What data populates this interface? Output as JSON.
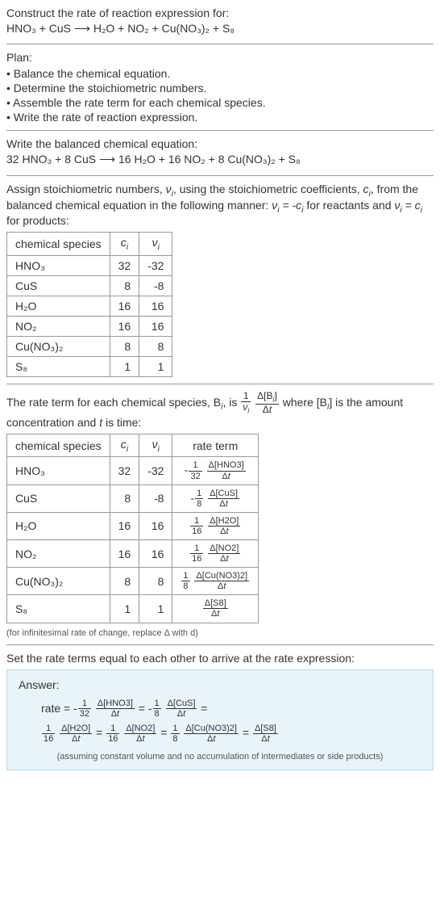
{
  "header1": "Construct the rate of reaction expression for:",
  "eq1": "HNO₃ + CuS ⟶ H₂O + NO₂ + Cu(NO₃)₂ + S₈",
  "planTitle": "Plan:",
  "plan": [
    "• Balance the chemical equation.",
    "• Determine the stoichiometric numbers.",
    "• Assemble the rate term for each chemical species.",
    "• Write the rate of reaction expression."
  ],
  "balanceTitle": "Write the balanced chemical equation:",
  "eq2": "32 HNO₃ + 8 CuS ⟶ 16 H₂O + 16 NO₂ + 8 Cu(NO₃)₂ + S₈",
  "assignText1": "Assign stoichiometric numbers, ",
  "assignText2": ", using the stoichiometric coefficients, ",
  "assignText3": ", from the balanced chemical equation in the following manner: ",
  "assignText4": " for reactants and ",
  "assignText5": " for products:",
  "table1": {
    "cols": [
      "chemical species",
      "cᵢ",
      "νᵢ"
    ],
    "rows": [
      {
        "sp": "HNO₃",
        "c": "32",
        "v": "-32"
      },
      {
        "sp": "CuS",
        "c": "8",
        "v": "-8"
      },
      {
        "sp": "H₂O",
        "c": "16",
        "v": "16"
      },
      {
        "sp": "NO₂",
        "c": "16",
        "v": "16"
      },
      {
        "sp": "Cu(NO₃)₂",
        "c": "8",
        "v": "8"
      },
      {
        "sp": "S₈",
        "c": "1",
        "v": "1"
      }
    ]
  },
  "rateTermText1": "The rate term for each chemical species, B",
  "rateTermText2": ", is ",
  "rateTermText3": " where [B",
  "rateTermText4": "] is the amount concentration and ",
  "rateTermText5": " is time:",
  "table2": {
    "cols": [
      "chemical species",
      "cᵢ",
      "νᵢ",
      "rate term"
    ],
    "rows": [
      {
        "sp": "HNO₃",
        "c": "32",
        "v": "-32",
        "sign": "-",
        "coef_num": "1",
        "coef_den": "32",
        "delta": "Δ[HNO3]"
      },
      {
        "sp": "CuS",
        "c": "8",
        "v": "-8",
        "sign": "-",
        "coef_num": "1",
        "coef_den": "8",
        "delta": "Δ[CuS]"
      },
      {
        "sp": "H₂O",
        "c": "16",
        "v": "16",
        "sign": "",
        "coef_num": "1",
        "coef_den": "16",
        "delta": "Δ[H2O]"
      },
      {
        "sp": "NO₂",
        "c": "16",
        "v": "16",
        "sign": "",
        "coef_num": "1",
        "coef_den": "16",
        "delta": "Δ[NO2]"
      },
      {
        "sp": "Cu(NO₃)₂",
        "c": "8",
        "v": "8",
        "sign": "",
        "coef_num": "1",
        "coef_den": "8",
        "delta": "Δ[Cu(NO3)2]"
      },
      {
        "sp": "S₈",
        "c": "1",
        "v": "1",
        "sign": "",
        "coef_num": "",
        "coef_den": "",
        "delta": "Δ[S8]"
      }
    ]
  },
  "infNote": "(for infinitesimal rate of change, replace Δ with d)",
  "setRateText": "Set the rate terms equal to each other to arrive at the rate expression:",
  "answerTitle": "Answer:",
  "answerNote": "(assuming constant volume and no accumulation of intermediates or side products)"
}
